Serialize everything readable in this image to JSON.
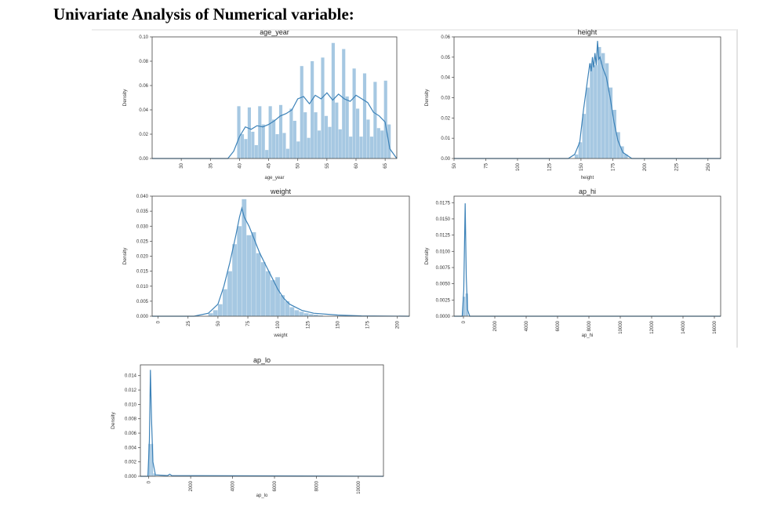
{
  "heading": "Univariate Analysis of Numerical variable:",
  "colors": {
    "bar": "#a6c8e2",
    "kde": "#3c82b8",
    "axes": "#444444"
  },
  "chart_data": [
    {
      "type": "bar",
      "subtype": "histogram_with_kde",
      "title": "age_year",
      "xlabel": "age_year",
      "ylabel": "Density",
      "xlim": [
        25,
        67
      ],
      "ylim": [
        0,
        0.1
      ],
      "xticks": [
        30,
        35,
        40,
        45,
        50,
        55,
        60,
        65
      ],
      "yticks": [
        0.0,
        0.02,
        0.04,
        0.06,
        0.08,
        0.1
      ],
      "ytick_labels": [
        "0.00",
        "0.02",
        "0.04",
        "0.06",
        "0.08",
        "0.10"
      ],
      "bin_width": 0.6,
      "bins": [
        [
          39.6,
          0.043
        ],
        [
          40.2,
          0.02
        ],
        [
          40.8,
          0.016
        ],
        [
          41.4,
          0.042
        ],
        [
          42.0,
          0.022
        ],
        [
          42.6,
          0.011
        ],
        [
          43.2,
          0.043
        ],
        [
          43.8,
          0.028
        ],
        [
          44.4,
          0.007
        ],
        [
          45.0,
          0.043
        ],
        [
          45.6,
          0.032
        ],
        [
          46.2,
          0.02
        ],
        [
          46.8,
          0.044
        ],
        [
          47.4,
          0.021
        ],
        [
          48.0,
          0.008
        ],
        [
          48.6,
          0.041
        ],
        [
          49.2,
          0.031
        ],
        [
          49.8,
          0.014
        ],
        [
          50.4,
          0.076
        ],
        [
          51.0,
          0.038
        ],
        [
          51.6,
          0.017
        ],
        [
          52.2,
          0.08
        ],
        [
          52.8,
          0.038
        ],
        [
          53.4,
          0.023
        ],
        [
          54.0,
          0.083
        ],
        [
          54.6,
          0.035
        ],
        [
          55.2,
          0.026
        ],
        [
          55.8,
          0.095
        ],
        [
          56.4,
          0.046
        ],
        [
          57.0,
          0.024
        ],
        [
          57.6,
          0.09
        ],
        [
          58.2,
          0.051
        ],
        [
          58.8,
          0.018
        ],
        [
          59.4,
          0.074
        ],
        [
          60.0,
          0.041
        ],
        [
          60.6,
          0.018
        ],
        [
          61.2,
          0.07
        ],
        [
          61.8,
          0.032
        ],
        [
          62.4,
          0.018
        ],
        [
          63.0,
          0.063
        ],
        [
          63.6,
          0.025
        ],
        [
          64.2,
          0.023
        ],
        [
          64.8,
          0.064
        ],
        [
          65.4,
          0.028
        ]
      ],
      "kde": [
        [
          25,
          0
        ],
        [
          38,
          0
        ],
        [
          39,
          0.006
        ],
        [
          40,
          0.018
        ],
        [
          41,
          0.026
        ],
        [
          42,
          0.024
        ],
        [
          43,
          0.027
        ],
        [
          44,
          0.026
        ],
        [
          45,
          0.028
        ],
        [
          46,
          0.031
        ],
        [
          47,
          0.035
        ],
        [
          48,
          0.037
        ],
        [
          49,
          0.04
        ],
        [
          50,
          0.049
        ],
        [
          51,
          0.051
        ],
        [
          52,
          0.045
        ],
        [
          53,
          0.052
        ],
        [
          54,
          0.049
        ],
        [
          55,
          0.054
        ],
        [
          56,
          0.048
        ],
        [
          57,
          0.053
        ],
        [
          58,
          0.049
        ],
        [
          59,
          0.047
        ],
        [
          60,
          0.052
        ],
        [
          61,
          0.049
        ],
        [
          62,
          0.046
        ],
        [
          63,
          0.038
        ],
        [
          64,
          0.035
        ],
        [
          65,
          0.03
        ],
        [
          65.8,
          0.008
        ],
        [
          67,
          0
        ]
      ]
    },
    {
      "type": "bar",
      "subtype": "histogram_with_kde",
      "title": "height",
      "xlabel": "height",
      "ylabel": "Density",
      "xlim": [
        50,
        260
      ],
      "ylim": [
        0,
        0.06
      ],
      "xticks": [
        50,
        75,
        100,
        125,
        150,
        175,
        200,
        225,
        250
      ],
      "yticks": [
        0.0,
        0.01,
        0.02,
        0.03,
        0.04,
        0.05,
        0.06
      ],
      "ytick_labels": [
        "0.00",
        "0.01",
        "0.02",
        "0.03",
        "0.04",
        "0.05",
        "0.06"
      ],
      "bin_width": 3,
      "bins": [
        [
          145,
          0.002
        ],
        [
          148,
          0.008
        ],
        [
          151,
          0.022
        ],
        [
          154,
          0.035
        ],
        [
          157,
          0.047
        ],
        [
          160,
          0.046
        ],
        [
          163,
          0.055
        ],
        [
          166,
          0.052
        ],
        [
          169,
          0.047
        ],
        [
          172,
          0.035
        ],
        [
          175,
          0.024
        ],
        [
          178,
          0.013
        ],
        [
          181,
          0.006
        ],
        [
          184,
          0.002
        ]
      ],
      "kde": [
        [
          50,
          0
        ],
        [
          140,
          0
        ],
        [
          145,
          0.002
        ],
        [
          149,
          0.008
        ],
        [
          152,
          0.024
        ],
        [
          155,
          0.038
        ],
        [
          157,
          0.047
        ],
        [
          158,
          0.043
        ],
        [
          159,
          0.05
        ],
        [
          160,
          0.045
        ],
        [
          161,
          0.052
        ],
        [
          162,
          0.046
        ],
        [
          163,
          0.058
        ],
        [
          164,
          0.049
        ],
        [
          165,
          0.05
        ],
        [
          167,
          0.045
        ],
        [
          170,
          0.04
        ],
        [
          173,
          0.03
        ],
        [
          176,
          0.018
        ],
        [
          179,
          0.009
        ],
        [
          183,
          0.003
        ],
        [
          190,
          0
        ],
        [
          260,
          0
        ]
      ]
    },
    {
      "type": "bar",
      "subtype": "histogram_with_kde",
      "title": "weight",
      "xlabel": "weight",
      "ylabel": "Density",
      "xlim": [
        -5,
        210
      ],
      "ylim": [
        0,
        0.04
      ],
      "xticks": [
        0,
        25,
        50,
        75,
        100,
        125,
        150,
        175,
        200
      ],
      "yticks": [
        0.0,
        0.005,
        0.01,
        0.015,
        0.02,
        0.025,
        0.03,
        0.035,
        0.04
      ],
      "ytick_labels": [
        "0.000",
        "0.005",
        "0.010",
        "0.015",
        "0.020",
        "0.025",
        "0.030",
        "0.035",
        "0.040"
      ],
      "bin_width": 4,
      "bins": [
        [
          42,
          0.001
        ],
        [
          46,
          0.002
        ],
        [
          50,
          0.004
        ],
        [
          54,
          0.009
        ],
        [
          58,
          0.015
        ],
        [
          62,
          0.024
        ],
        [
          66,
          0.03
        ],
        [
          70,
          0.039
        ],
        [
          74,
          0.027
        ],
        [
          78,
          0.028
        ],
        [
          82,
          0.021
        ],
        [
          86,
          0.018
        ],
        [
          90,
          0.015
        ],
        [
          94,
          0.012
        ],
        [
          98,
          0.013
        ],
        [
          102,
          0.007
        ],
        [
          106,
          0.005
        ],
        [
          110,
          0.003
        ],
        [
          114,
          0.002
        ],
        [
          118,
          0.0015
        ],
        [
          122,
          0.001
        ],
        [
          126,
          0.0007
        ],
        [
          130,
          0.0005
        ],
        [
          134,
          0.0003
        ]
      ],
      "kde": [
        [
          -5,
          0
        ],
        [
          30,
          0
        ],
        [
          42,
          0.001
        ],
        [
          50,
          0.004
        ],
        [
          55,
          0.01
        ],
        [
          60,
          0.018
        ],
        [
          65,
          0.027
        ],
        [
          68,
          0.033
        ],
        [
          70,
          0.036
        ],
        [
          72,
          0.033
        ],
        [
          76,
          0.03
        ],
        [
          80,
          0.026
        ],
        [
          85,
          0.021
        ],
        [
          90,
          0.017
        ],
        [
          95,
          0.013
        ],
        [
          100,
          0.009
        ],
        [
          105,
          0.006
        ],
        [
          110,
          0.004
        ],
        [
          120,
          0.002
        ],
        [
          130,
          0.001
        ],
        [
          150,
          0.0004
        ],
        [
          170,
          0.0001
        ],
        [
          210,
          0
        ]
      ]
    },
    {
      "type": "bar",
      "subtype": "histogram_with_kde",
      "title": "ap_hi",
      "xlabel": "ap_hi",
      "ylabel": "Density",
      "xlim": [
        -600,
        16400
      ],
      "ylim": [
        0,
        0.0185
      ],
      "xticks": [
        0,
        2000,
        4000,
        6000,
        8000,
        10000,
        12000,
        14000,
        16000
      ],
      "yticks": [
        0.0,
        0.0025,
        0.005,
        0.0075,
        0.01,
        0.0125,
        0.015,
        0.0175
      ],
      "ytick_labels": [
        "0.0000",
        "0.0025",
        "0.0050",
        "0.0075",
        "0.0100",
        "0.0125",
        "0.0150",
        "0.0175"
      ],
      "bin_width": 180,
      "bins": [
        [
          -50,
          0.003
        ],
        [
          130,
          0.0035
        ]
      ],
      "kde": [
        [
          -600,
          0
        ],
        [
          -80,
          0
        ],
        [
          20,
          0.004
        ],
        [
          110,
          0.0174
        ],
        [
          180,
          0.006
        ],
        [
          260,
          0.001
        ],
        [
          400,
          0
        ],
        [
          16400,
          0
        ]
      ]
    },
    {
      "type": "bar",
      "subtype": "histogram_with_kde",
      "title": "ap_lo",
      "xlabel": "ap_lo",
      "ylabel": "Density",
      "xlim": [
        -400,
        11200
      ],
      "ylim": [
        0,
        0.0155
      ],
      "xticks": [
        0,
        2000,
        4000,
        6000,
        8000,
        10000
      ],
      "yticks": [
        0.0,
        0.002,
        0.004,
        0.006,
        0.008,
        0.01,
        0.012,
        0.014
      ],
      "ytick_labels": [
        "0.000",
        "0.002",
        "0.004",
        "0.006",
        "0.008",
        "0.010",
        "0.012",
        "0.014"
      ],
      "bin_width": 120,
      "bins": [
        [
          -20,
          0.0045
        ],
        [
          100,
          0.0045
        ],
        [
          220,
          0.0004
        ]
      ],
      "kde": [
        [
          -400,
          0
        ],
        [
          -40,
          0
        ],
        [
          30,
          0.005
        ],
        [
          80,
          0.0148
        ],
        [
          130,
          0.008
        ],
        [
          200,
          0.002
        ],
        [
          320,
          0.0002
        ],
        [
          900,
          0.0001
        ],
        [
          1000,
          0.0003
        ],
        [
          1100,
          0.0001
        ],
        [
          11200,
          0
        ]
      ]
    }
  ]
}
